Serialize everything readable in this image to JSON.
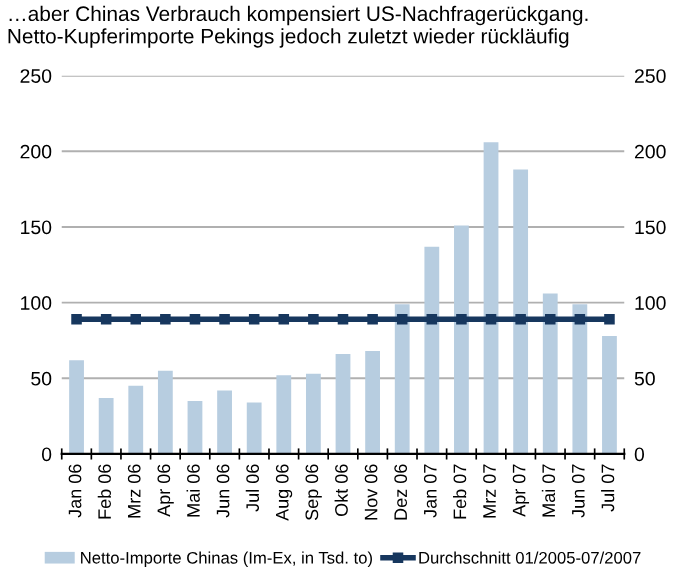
{
  "chart_data": {
    "type": "bar",
    "title": "…aber Chinas Verbrauch kompensiert US-Nachfragerückgang. Netto-Kupferimporte Pekings jedoch zuletzt wieder rückläufig",
    "categories": [
      "Jan 06",
      "Feb 06",
      "Mrz 06",
      "Apr 06",
      "Mai 06",
      "Jun 06",
      "Jul 06",
      "Aug 06",
      "Sep 06",
      "Okt 06",
      "Nov 06",
      "Dez 06",
      "Jan 07",
      "Feb 07",
      "Mrz 07",
      "Apr 07",
      "Mai 07",
      "Jun 07",
      "Jul 07"
    ],
    "series": [
      {
        "name": "Netto-Importe Chinas (Im-Ex, in Tsd. to)",
        "color": "#b7cde0",
        "values": [
          62,
          37,
          45,
          55,
          35,
          42,
          34,
          52,
          53,
          66,
          68,
          99,
          137,
          151,
          206,
          188,
          106,
          99,
          78
        ]
      },
      {
        "name": "Durchschnitt 01/2005-07/2007",
        "type": "line",
        "color": "#17375e",
        "marker": "square",
        "values": [
          89,
          89,
          89,
          89,
          89,
          89,
          89,
          89,
          89,
          89,
          89,
          89,
          89,
          89,
          89,
          89,
          89,
          89,
          89
        ]
      }
    ],
    "ylim": [
      0,
      250
    ],
    "yticks": [
      0,
      50,
      100,
      150,
      200,
      250
    ],
    "y2lim": [
      0,
      250
    ],
    "y2ticks": [
      0,
      50,
      100,
      150,
      200,
      250
    ],
    "grid": "y",
    "legend": "bottom"
  }
}
